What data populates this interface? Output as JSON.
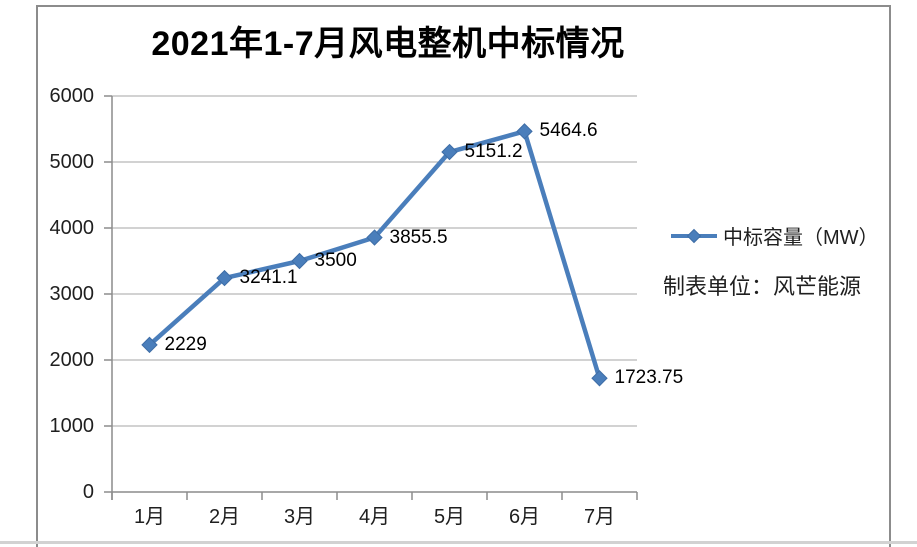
{
  "chart_data": {
    "type": "line",
    "title": "2021年1-7月风电整机中标情况",
    "categories": [
      "1月",
      "2月",
      "3月",
      "4月",
      "5月",
      "6月",
      "7月"
    ],
    "series": [
      {
        "name": "中标容量（MW）",
        "values": [
          2229,
          3241.1,
          3500,
          3855.5,
          5151.2,
          5464.6,
          1723.75
        ]
      }
    ],
    "data_labels": [
      "2229",
      "3241.1",
      "3500",
      "3855.5",
      "5151.2",
      "5464.6",
      "1723.75"
    ],
    "xlabel": "",
    "ylabel": "",
    "ylim": [
      0,
      6000
    ],
    "ytick_interval": 1000,
    "yticks": [
      "0",
      "1000",
      "2000",
      "3000",
      "4000",
      "5000",
      "6000"
    ],
    "grid": true,
    "legend_position": "right",
    "marker": "diamond",
    "colors": {
      "line": "#4a7ebb",
      "marker_fill": "#4a7ebb",
      "marker_stroke": "#3e6da6",
      "gridline": "#a6a6a6",
      "axis": "#8c8c8c",
      "frame_border": "#8c8c8c"
    }
  },
  "legend": {
    "label": "中标容量（MW）"
  },
  "note": {
    "text": "制表单位：风芒能源"
  },
  "header": {
    "title": "2021年1-7月风电整机中标情况"
  }
}
